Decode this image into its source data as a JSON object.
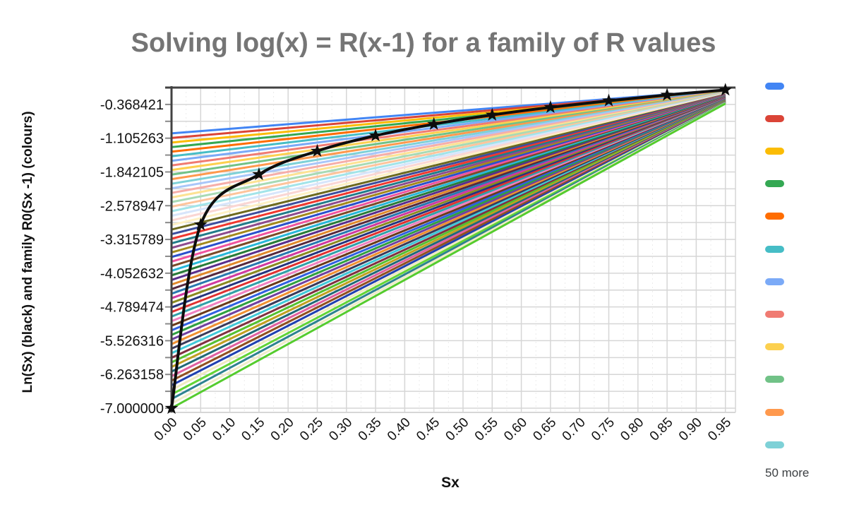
{
  "chart_data": {
    "type": "line",
    "title": "Solving log(x) = R(x-1) for a family of R values",
    "xlabel": "Sx",
    "ylabel": "Ln(Sx) (black) and family R0(Sx -1) (colours)",
    "x_ticks": [
      "0.00",
      "0.05",
      "0.10",
      "0.15",
      "0.20",
      "0.25",
      "0.30",
      "0.35",
      "0.40",
      "0.45",
      "0.50",
      "0.55",
      "0.60",
      "0.65",
      "0.70",
      "0.75",
      "0.80",
      "0.85",
      "0.90",
      "0.95"
    ],
    "y_ticks": [
      "-0.368421",
      "-1.105263",
      "-1.842105",
      "-2.578947",
      "-3.315789",
      "-4.052632",
      "-4.789474",
      "-5.526316",
      "-6.263158",
      "-7.000000"
    ],
    "ylim": [
      -7,
      0
    ],
    "xlim": [
      0,
      0.95
    ],
    "grid": true,
    "black_series": {
      "name": "Ln(Sx)",
      "color": "#0d0d0d",
      "marker": "star",
      "points": [
        [
          0.0,
          -7.0
        ],
        [
          0.05,
          -2.995732
        ],
        [
          0.15,
          -1.89712
        ],
        [
          0.25,
          -1.386294
        ],
        [
          0.35,
          -1.049822
        ],
        [
          0.45,
          -0.798508
        ],
        [
          0.55,
          -0.597837
        ],
        [
          0.65,
          -0.430783
        ],
        [
          0.75,
          -0.287682
        ],
        [
          0.85,
          -0.162519
        ],
        [
          0.95,
          -0.051293
        ]
      ]
    },
    "family": {
      "formula": "y = R0 * (Sx - 1)",
      "r0_values": [
        1.0,
        1.1,
        1.2,
        1.3,
        1.4,
        1.5,
        1.6,
        1.7,
        1.8,
        1.9,
        2.0,
        2.1,
        2.2,
        2.3,
        2.4,
        2.5,
        2.6,
        2.7,
        2.8,
        2.9,
        3.0,
        3.1,
        3.2,
        3.3,
        3.4,
        3.5,
        3.6,
        3.7,
        3.8,
        3.9,
        4.0,
        4.1,
        4.2,
        4.3,
        4.4,
        4.5,
        4.6,
        4.7,
        4.8,
        4.9,
        5.0,
        5.1,
        5.2,
        5.3,
        5.4,
        5.5,
        5.6,
        5.7,
        5.8,
        5.9,
        6.0,
        6.1,
        6.2,
        6.3,
        6.4,
        6.5,
        6.6,
        6.7,
        6.8,
        6.9,
        7.0
      ],
      "colors": [
        "#4285F4",
        "#DB4437",
        "#FBBC04",
        "#34A853",
        "#FF6D01",
        "#46BDC6",
        "#7BAAF7",
        "#F07B72",
        "#FCD04F",
        "#71C287",
        "#FF994D",
        "#7ED1D7",
        "#A9C6F9",
        "#F6AEA9",
        "#FDE293",
        "#A8DAB5",
        "#FEC49B",
        "#A2E4E9",
        "#D7E5FB",
        "#FAD6D3",
        "#FEF0C3",
        "#6E6A1E",
        "#3D4E9E",
        "#F0382E",
        "#217C8A",
        "#8E4B8E",
        "#A3891C",
        "#2A50CC",
        "#F0549E",
        "#7C4A28",
        "#27B7D8",
        "#287C38",
        "#5A2D8C",
        "#E0882A",
        "#56283E",
        "#2878B0",
        "#D03AA0",
        "#8A8A20",
        "#24347E",
        "#E03030",
        "#30A0A8",
        "#F080C0",
        "#6A3A1A",
        "#3060E0",
        "#30A040",
        "#7040A0",
        "#F09030",
        "#3A3A5A",
        "#40C8D8",
        "#803040",
        "#55C030",
        "#C0A020",
        "#206878",
        "#E060A0",
        "#905020",
        "#2040B0",
        "#EFEAC0",
        "#62D435",
        "#2E8290",
        "#F0ECC8",
        "#55CC2E"
      ]
    },
    "legend": {
      "position": "right",
      "visible_swatches": [
        "#4285F4",
        "#DB4437",
        "#FBBC04",
        "#34A853",
        "#FF6D01",
        "#46BDC6",
        "#7BAAF7",
        "#F07B72",
        "#FCD04F",
        "#71C287",
        "#FF994D",
        "#7ED1D7"
      ],
      "more_label": "50 more"
    },
    "style": {
      "gridline_color": "#d6d6d6",
      "minor_grid_color": "#ececec",
      "axis_line_color": "#424242",
      "tick_color": "#8a8a8a",
      "title_color": "#757575"
    }
  }
}
